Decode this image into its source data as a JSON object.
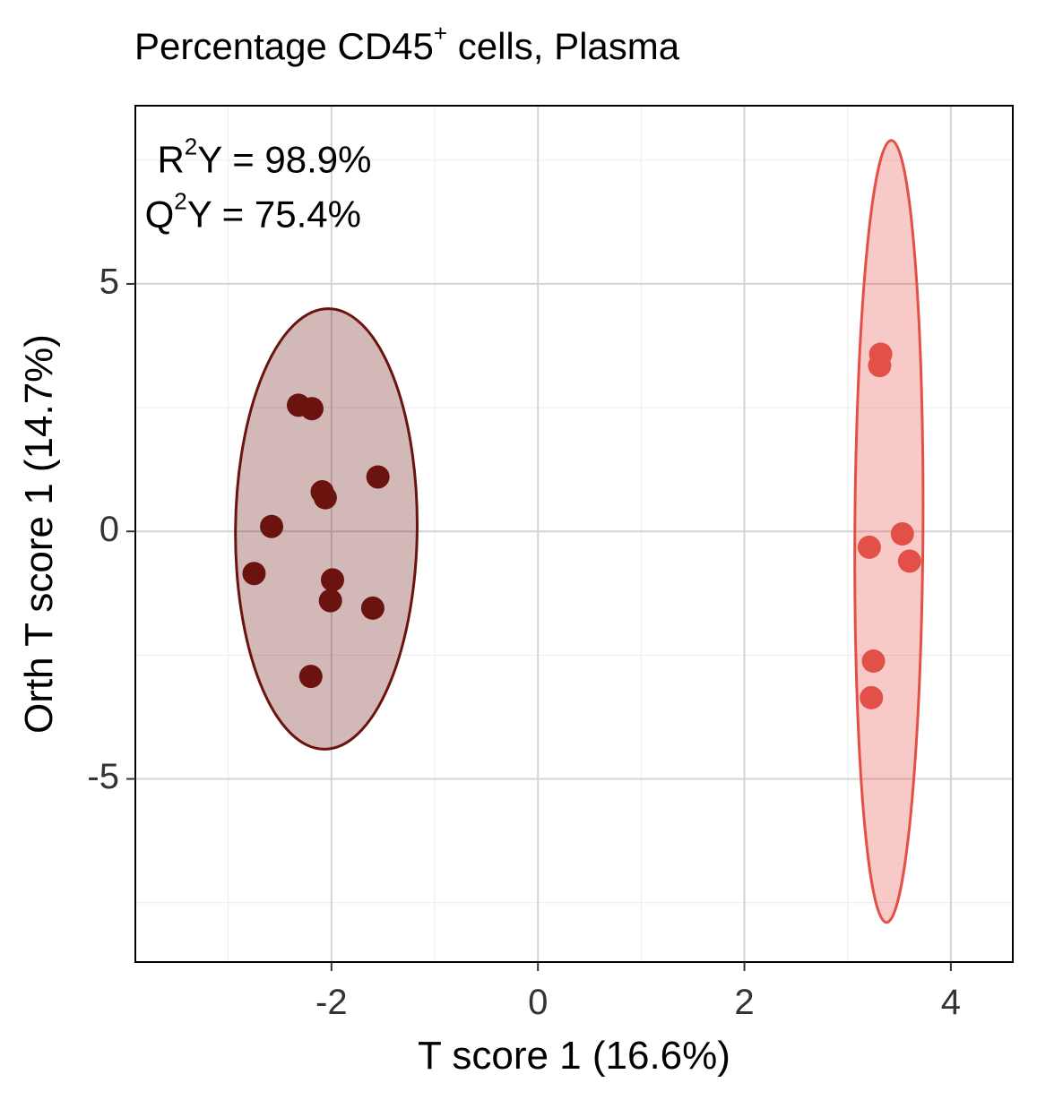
{
  "chart_data": {
    "type": "scatter",
    "title": {
      "pre": "Percentage CD45",
      "sup": "+",
      "post": " cells, Plasma"
    },
    "xlabel": "T score 1 (16.6%)",
    "ylabel": "Orth T score 1 (14.7%)",
    "xlim": [
      -3.9,
      4.6
    ],
    "ylim": [
      -8.7,
      8.6
    ],
    "xticks": [
      -2,
      0,
      2,
      4
    ],
    "xtick_labels": [
      "-2",
      "0",
      "2",
      "4"
    ],
    "yticks": [
      -5,
      0,
      5
    ],
    "ytick_labels": [
      "-5",
      "0",
      "5"
    ],
    "grid": true,
    "annotations": [
      {
        "base": "R",
        "sup": "2",
        "rest": "Y = 98.9%",
        "x": -2.65,
        "y": 7.45
      },
      {
        "base": "Q",
        "sup": "2",
        "rest": "Y = 75.4%",
        "x": -2.76,
        "y": 6.35
      }
    ],
    "series": [
      {
        "color": "#6b130e",
        "fill": "rgba(107,19,14,0.30)",
        "ellipse": {
          "center": [
            -2.05,
            0.05
          ],
          "half_width": 0.88,
          "half_height": 4.45,
          "angle_deg": 0.6
        },
        "x": [
          -2.32,
          -2.19,
          -1.55,
          -2.09,
          -2.06,
          -2.58,
          -2.75,
          -1.99,
          -2.01,
          -1.6,
          -2.2
        ],
        "y": [
          2.55,
          2.48,
          1.1,
          0.8,
          0.68,
          0.1,
          -0.85,
          -0.98,
          -1.4,
          -1.55,
          -2.93
        ]
      },
      {
        "color": "#e35047",
        "fill": "rgba(227,80,71,0.30)",
        "ellipse": {
          "center": [
            3.4,
            0.0
          ],
          "half_width": 0.33,
          "half_height": 7.9,
          "angle_deg": 0.35
        },
        "x": [
          3.32,
          3.31,
          3.53,
          3.21,
          3.6,
          3.25,
          3.23
        ],
        "y": [
          3.58,
          3.35,
          -0.05,
          -0.32,
          -0.6,
          -2.62,
          -3.36
        ]
      }
    ]
  }
}
